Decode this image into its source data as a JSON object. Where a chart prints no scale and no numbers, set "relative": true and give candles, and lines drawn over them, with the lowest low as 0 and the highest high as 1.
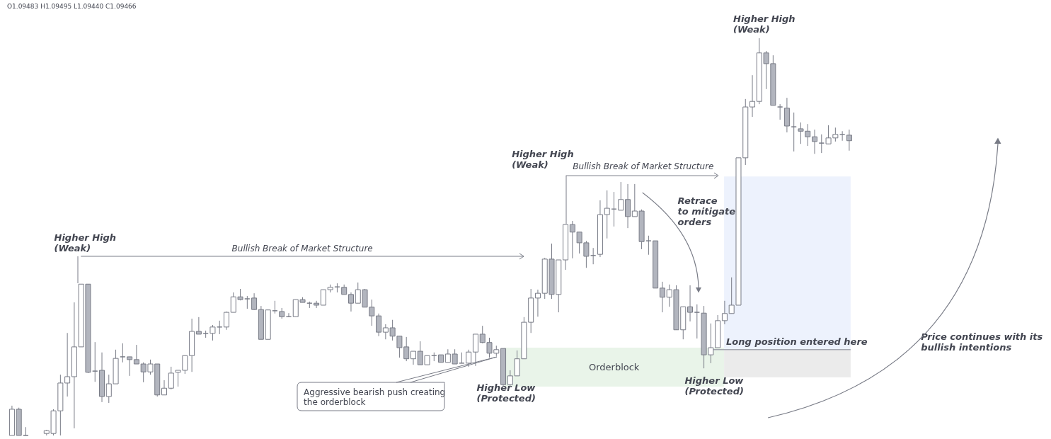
{
  "chart_data": {
    "type": "candlestick",
    "relative": true,
    "categories": [
      null,
      null,
      null,
      null,
      null,
      null,
      null,
      null,
      null,
      null,
      null,
      null,
      null,
      null,
      null,
      null,
      null,
      null,
      null,
      null,
      null,
      null,
      null,
      null,
      null,
      null,
      null,
      null,
      null,
      null,
      null,
      null,
      null,
      null,
      null,
      null,
      null,
      null,
      null,
      null,
      null,
      null,
      null,
      null,
      null,
      null,
      null,
      null,
      null,
      null,
      null,
      null,
      null,
      null,
      null,
      null,
      null,
      null,
      null,
      null,
      null,
      null,
      null,
      null,
      null,
      null,
      null,
      null,
      null,
      null,
      null,
      null,
      null,
      null,
      null,
      null,
      null,
      null,
      null,
      null,
      null,
      null,
      null,
      null,
      null,
      null,
      null,
      null,
      null,
      null,
      null,
      null,
      null,
      null,
      null,
      null,
      null,
      null,
      null,
      null,
      null,
      null,
      null,
      null,
      null,
      null,
      null,
      null,
      null,
      null,
      null,
      null,
      null,
      null,
      null,
      null,
      null,
      null,
      null,
      null,
      null,
      null
    ],
    "ohlc": [
      [
        0,
        0.075,
        0,
        0.066
      ],
      [
        0.066,
        0.07,
        0,
        0
      ],
      [
        0,
        0.021,
        0,
        0
      ],
      null,
      null,
      [
        0.005,
        0.014,
        0,
        0.012
      ],
      [
        0.005,
        0.066,
        0,
        0.062
      ],
      [
        0.062,
        0.153,
        0,
        0.132
      ],
      [
        0.132,
        0.258,
        0.098,
        0.148
      ],
      [
        0.148,
        0.335,
        0.018,
        0.223
      ],
      [
        0.223,
        0.381,
        0.223,
        0.381
      ],
      [
        0.381,
        0.381,
        0.157,
        0.159
      ],
      [
        0.162,
        0.235,
        0.135,
        0.162
      ],
      [
        0.164,
        0.209,
        0.084,
        0.098
      ],
      [
        0.098,
        0.153,
        0.082,
        0.13
      ],
      [
        0.13,
        0.216,
        0.13,
        0.194
      ],
      [
        0.198,
        0.232,
        0.184,
        0.198
      ],
      [
        0.198,
        0.198,
        0.15,
        0.191
      ],
      [
        0.191,
        0.228,
        0.18,
        0.18
      ],
      [
        0.18,
        0.184,
        0.134,
        0.16
      ],
      [
        0.16,
        0.191,
        0.153,
        0.18
      ],
      [
        0.18,
        0.18,
        0.098,
        0.102
      ],
      [
        0.102,
        0.139,
        0.102,
        0.119
      ],
      [
        0.119,
        0.173,
        0.116,
        0.157
      ],
      [
        0.159,
        0.164,
        0.123,
        0.164
      ],
      [
        0.164,
        0.201,
        0.155,
        0.201
      ],
      [
        0.201,
        0.294,
        0.16,
        0.262
      ],
      [
        0.262,
        0.298,
        0.255,
        0.255
      ],
      [
        0.257,
        0.264,
        0.246,
        0.257
      ],
      [
        0.257,
        0.278,
        0.239,
        0.273
      ],
      [
        0.273,
        0.289,
        0.255,
        0.273
      ],
      [
        0.273,
        0.312,
        0.266,
        0.31
      ],
      [
        0.31,
        0.36,
        0.31,
        0.349
      ],
      [
        0.349,
        0.369,
        0.34,
        0.342
      ],
      [
        0.344,
        0.351,
        0.319,
        0.344
      ],
      [
        0.346,
        0.358,
        0.316,
        0.317
      ],
      [
        0.317,
        0.326,
        0.242,
        0.242
      ],
      [
        0.242,
        0.316,
        0.242,
        0.316
      ],
      [
        0.314,
        0.339,
        0.307,
        0.314
      ],
      [
        0.312,
        0.321,
        0.294,
        0.299
      ],
      [
        0.299,
        0.308,
        0.299,
        0.299
      ],
      [
        0.299,
        0.342,
        0.299,
        0.342
      ],
      [
        0.342,
        0.348,
        0.335,
        0.335
      ],
      [
        0.333,
        0.337,
        0.321,
        0.333
      ],
      [
        0.333,
        0.339,
        0.321,
        0.328
      ],
      [
        0.328,
        0.367,
        0.328,
        0.367
      ],
      [
        0.367,
        0.38,
        0.36,
        0.373
      ],
      [
        0.374,
        0.383,
        0.36,
        0.374
      ],
      [
        0.373,
        0.38,
        0.355,
        0.355
      ],
      [
        0.355,
        0.36,
        0.312,
        0.333
      ],
      [
        0.333,
        0.385,
        0.333,
        0.367
      ],
      [
        0.367,
        0.369,
        0.323,
        0.323
      ],
      [
        0.323,
        0.342,
        0.276,
        0.301
      ],
      [
        0.301,
        0.307,
        0.25,
        0.26
      ],
      [
        0.26,
        0.28,
        0.242,
        0.271
      ],
      [
        0.271,
        0.291,
        0.239,
        0.25
      ],
      [
        0.25,
        0.25,
        0.196,
        0.221
      ],
      [
        0.223,
        0.248,
        0.187,
        0.193
      ],
      [
        0.193,
        0.212,
        0.178,
        0.212
      ],
      [
        0.212,
        0.237,
        0.178,
        0.178
      ],
      [
        0.178,
        0.201,
        0.178,
        0.201
      ],
      [
        0.201,
        0.209,
        0.187,
        0.201
      ],
      [
        0.203,
        0.203,
        0.184,
        0.184
      ],
      [
        0.184,
        0.217,
        0.184,
        0.205
      ],
      [
        0.205,
        0.217,
        0.18,
        0.18
      ],
      [
        0.182,
        0.209,
        0.182,
        0.182
      ],
      [
        0.182,
        0.216,
        0.173,
        0.21
      ],
      [
        0.21,
        0.255,
        0.175,
        0.255
      ],
      [
        0.255,
        0.276,
        0.232,
        0.234
      ],
      [
        0.234,
        0.246,
        0.196,
        0.207
      ],
      [
        0.207,
        0.226,
        0.2,
        0.216
      ],
      [
        0.219,
        0.219,
        0.125,
        0.128
      ],
      [
        0.128,
        0.164,
        0.125,
        0.15
      ],
      [
        0.15,
        0.214,
        0.15,
        0.193
      ],
      [
        0.193,
        0.298,
        0.193,
        0.285
      ],
      [
        0.285,
        0.369,
        0.258,
        0.346
      ],
      [
        0.346,
        0.367,
        0.299,
        0.358
      ],
      [
        0.358,
        0.447,
        0.344,
        0.444
      ],
      [
        0.444,
        0.483,
        0.344,
        0.355
      ],
      [
        0.355,
        0.442,
        0.31,
        0.442
      ],
      [
        0.442,
        0.531,
        0.417,
        0.531
      ],
      [
        0.531,
        0.54,
        0.446,
        0.512
      ],
      [
        0.512,
        0.512,
        0.458,
        0.485
      ],
      [
        0.485,
        0.49,
        0.422,
        0.451
      ],
      [
        0.453,
        0.472,
        0.431,
        0.453
      ],
      [
        0.456,
        0.592,
        0.449,
        0.556
      ],
      [
        0.556,
        0.617,
        0.496,
        0.572
      ],
      [
        0.57,
        0.613,
        0.526,
        0.57
      ],
      [
        0.567,
        0.638,
        0.567,
        0.594
      ],
      [
        0.594,
        0.633,
        0.522,
        0.551
      ],
      [
        0.551,
        0.633,
        0.551,
        0.565
      ],
      [
        0.565,
        0.569,
        0.469,
        0.488
      ],
      [
        0.49,
        0.503,
        0.455,
        0.49
      ],
      [
        0.49,
        0.49,
        0.371,
        0.371
      ],
      [
        0.371,
        0.387,
        0.31,
        0.348
      ],
      [
        0.348,
        0.38,
        0.324,
        0.367
      ],
      [
        0.367,
        0.378,
        0.266,
        0.266
      ],
      [
        0.266,
        0.324,
        0.242,
        0.324
      ],
      [
        0.324,
        0.378,
        0.287,
        0.31
      ],
      [
        0.31,
        0.33,
        0.244,
        0.31
      ],
      [
        0.308,
        0.326,
        0.169,
        0.203
      ],
      [
        0.203,
        0.282,
        0.182,
        0.221
      ],
      [
        0.221,
        0.303,
        0.221,
        0.289
      ],
      [
        0.289,
        0.339,
        0.28,
        0.307
      ],
      [
        0.307,
        0.398,
        0.307,
        0.328
      ],
      [
        0.328,
        0.699,
        0.328,
        0.699
      ],
      [
        0.699,
        0.847,
        0.681,
        0.827
      ],
      [
        0.827,
        0.907,
        0.802,
        0.841
      ],
      [
        0.841,
        1,
        0.834,
        0.963
      ],
      [
        0.963,
        0.968,
        0.872,
        0.936
      ],
      [
        0.936,
        0.957,
        0.831,
        0.831
      ],
      [
        0.827,
        0.834,
        0.795,
        0.827
      ],
      [
        0.824,
        0.85,
        0.763,
        0.779
      ],
      [
        0.777,
        0.813,
        0.715,
        0.777
      ],
      [
        0.772,
        0.788,
        0.734,
        0.766
      ],
      [
        0.766,
        0.784,
        0.729,
        0.752
      ],
      [
        0.752,
        0.77,
        0.709,
        0.74
      ],
      [
        0.736,
        0.758,
        0.711,
        0.736
      ],
      [
        0.734,
        0.781,
        0.734,
        0.749
      ],
      [
        0.749,
        0.775,
        0.74,
        0.758
      ],
      [
        0.758,
        0.766,
        0.742,
        0.758
      ],
      [
        0.756,
        0.77,
        0.717,
        0.742
      ]
    ],
    "bands": [
      {
        "axis": "y",
        "from": 0.123,
        "to": 0.221,
        "label": "Orderblock",
        "color": "#e9f4e9"
      },
      {
        "axis": "y",
        "from": 0.216,
        "to": 0.652,
        "color": "#edf2fd"
      },
      {
        "axis": "y",
        "from": 0.146,
        "to": 0.216,
        "color": "#ebebeb"
      }
    ],
    "ref_lines": [
      {
        "axis": "y",
        "value": 0.451,
        "label": "Bullish Break of Market Structure",
        "color": "#787b86"
      },
      {
        "axis": "y",
        "value": 0.654,
        "label": "Bullish Break of Market Structure",
        "color": "#787b86"
      },
      {
        "axis": "y",
        "value": 0.216,
        "label": "Long position entered here",
        "color": "#a3a6af"
      }
    ],
    "annotations": [
      "O1.09483 H1.09495 L1.09440 C1.09466",
      "Higher High\n(Weak)",
      "Higher High\n(Weak)",
      "Higher High\n(Weak)",
      "Retrace\nto mitigate\norders",
      "Aggressive bearish push creating\nthe orderblock",
      "Higher Low\n(Protected)",
      "Higher Low\n(Protected)",
      "Price continues with its\nbullish intentions"
    ]
  }
}
